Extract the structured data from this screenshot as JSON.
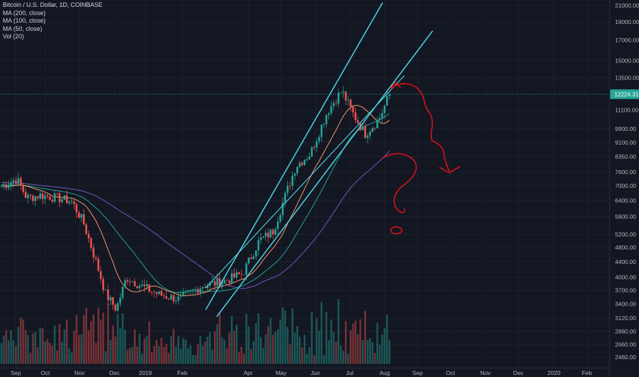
{
  "legend": {
    "symbol": "Bitcoin / U.S. Dollar, 1D, COINBASE",
    "ma200": "MA (200, close)",
    "ma100": "MA (100, close)",
    "ma50": "MA (50, close)",
    "vol": "Vol (20)"
  },
  "chart_data": {
    "type": "candlestick",
    "y_scale": "log",
    "y_ticks": [
      21000,
      19000,
      17000,
      15000,
      13500,
      12224.31,
      11100,
      9900,
      9100,
      8350,
      7600,
      7000,
      6400,
      5800,
      5200,
      4800,
      4400,
      4000,
      3700,
      3400,
      3120,
      2880,
      2660,
      2460
    ],
    "y_tick_labels": [
      "21000.00",
      "19000.00",
      "17000.00",
      "15000.00",
      "13500.00",
      "12224.31",
      "11100.00",
      "9900.00",
      "9100.00",
      "8350.00",
      "7600.00",
      "7000.00",
      "6400.00",
      "5800.00",
      "5200.00",
      "4800.00",
      "4400.00",
      "4000.00",
      "3700.00",
      "3400.00",
      "3120.00",
      "2880.00",
      "2660.00",
      "2460.00"
    ],
    "current_price": 12224.31,
    "x_ticks": [
      "Sep",
      "Oct",
      "Nov",
      "Dec",
      "2019",
      "Feb",
      "Apr",
      "May",
      "Jun",
      "Jul",
      "Aug",
      "Sep",
      "Oct",
      "Nov",
      "Dec",
      "2020",
      "Feb"
    ],
    "price_series": {
      "name": "Close",
      "points": [
        [
          "Sep",
          6950
        ],
        [
          "Sep",
          7300
        ],
        [
          "Sep",
          6500
        ],
        [
          "Oct",
          6600
        ],
        [
          "Oct",
          6500
        ],
        [
          "Nov",
          6350
        ],
        [
          "Nov",
          5600
        ],
        [
          "Nov",
          4500
        ],
        [
          "Dec",
          3600
        ],
        [
          "Dec",
          3300
        ],
        [
          "Dec",
          4000
        ],
        [
          "2019",
          3800
        ],
        [
          "2019",
          3600
        ],
        [
          "Feb",
          3500
        ],
        [
          "Feb",
          3800
        ],
        [
          "Feb",
          3900
        ],
        [
          "Apr",
          4100
        ],
        [
          "Apr",
          5000
        ],
        [
          "May",
          5300
        ],
        [
          "May",
          6500
        ],
        [
          "May",
          7900
        ],
        [
          "Jun",
          8500
        ],
        [
          "Jun",
          11000
        ],
        [
          "Jul",
          12500
        ],
        [
          "Jul",
          10800
        ],
        [
          "Jul",
          9600
        ],
        [
          "Aug",
          10500
        ],
        [
          "Aug",
          12224.31
        ]
      ]
    },
    "ma200_series": {
      "name": "MA (200, close)"
    },
    "ma100_series": {
      "name": "MA (100, close)"
    },
    "ma50_series": {
      "name": "MA (50, close)"
    },
    "volume_series": {
      "name": "Vol (20)"
    },
    "annotations": [
      {
        "type": "trend-channel-line",
        "color": "#4dd0e1"
      },
      {
        "type": "trend-channel-line",
        "color": "#4dd0e1"
      },
      {
        "type": "trend-channel-line",
        "color": "#4dd0e1"
      },
      {
        "type": "freehand-arrow",
        "color": "#e0101a"
      },
      {
        "type": "question-mark",
        "color": "#e0101a"
      }
    ],
    "colors": {
      "background": "#131722",
      "up": "#26a69a",
      "down": "#ef5350",
      "ma200": "#7e57c2",
      "ma100": "#26a69a",
      "ma50": "#ff9a67",
      "channel": "#4dd0e1",
      "annotation": "#e0101a",
      "price_line": "#26a69a"
    }
  }
}
